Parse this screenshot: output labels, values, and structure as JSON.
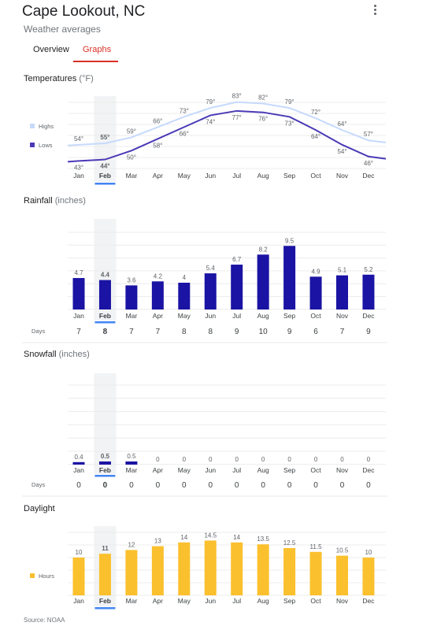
{
  "header": {
    "title": "Cape Lookout, NC",
    "subtitle": "Weather averages",
    "tabs": [
      {
        "label": "Overview",
        "active": false
      },
      {
        "label": "Graphs",
        "active": true
      }
    ]
  },
  "months": [
    "Jan",
    "Feb",
    "Mar",
    "Apr",
    "May",
    "Jun",
    "Jul",
    "Aug",
    "Sep",
    "Oct",
    "Nov",
    "Dec"
  ],
  "selected_month": "Feb",
  "days_label": "Days",
  "source": "Source: NOAA",
  "colors": {
    "highs": "#c6dafc",
    "lows": "#4a3ab6",
    "rain": "#1a13a3",
    "snow": "#1a13a3",
    "daylight": "#fbc02d",
    "highlight": "#f1f3f4",
    "accent": "#4285f4"
  },
  "chart_data": [
    {
      "type": "line",
      "title": "Temperatures",
      "unit": "(°F)",
      "categories": [
        "Jan",
        "Feb",
        "Mar",
        "Apr",
        "May",
        "Jun",
        "Jul",
        "Aug",
        "Sep",
        "Oct",
        "Nov",
        "Dec"
      ],
      "series": [
        {
          "name": "Highs",
          "values": [
            54,
            55,
            59,
            66,
            73,
            79,
            83,
            82,
            79,
            72,
            64,
            57
          ]
        },
        {
          "name": "Lows",
          "values": [
            43,
            44,
            50,
            58,
            66,
            74,
            77,
            76,
            73,
            64,
            54,
            46
          ]
        }
      ],
      "value_suffix": "°"
    },
    {
      "type": "bar",
      "title": "Rainfall",
      "unit": "(inches)",
      "categories": [
        "Jan",
        "Feb",
        "Mar",
        "Apr",
        "May",
        "Jun",
        "Jul",
        "Aug",
        "Sep",
        "Oct",
        "Nov",
        "Dec"
      ],
      "values": [
        4.7,
        4.4,
        3.6,
        4.2,
        4,
        5.4,
        6.7,
        8.2,
        9.5,
        4.9,
        5.1,
        5.2
      ],
      "days": [
        7,
        8,
        7,
        7,
        8,
        8,
        9,
        10,
        9,
        6,
        7,
        9
      ]
    },
    {
      "type": "bar",
      "title": "Snowfall",
      "unit": "(inches)",
      "categories": [
        "Jan",
        "Feb",
        "Mar",
        "Apr",
        "May",
        "Jun",
        "Jul",
        "Aug",
        "Sep",
        "Oct",
        "Nov",
        "Dec"
      ],
      "values": [
        0.4,
        0.5,
        0.5,
        0,
        0,
        0,
        0,
        0,
        0,
        0,
        0,
        0
      ],
      "days": [
        0,
        0,
        0,
        0,
        0,
        0,
        0,
        0,
        0,
        0,
        0,
        0
      ]
    },
    {
      "type": "bar",
      "title": "Daylight",
      "unit": "",
      "series_name": "Hours",
      "categories": [
        "Jan",
        "Feb",
        "Mar",
        "Apr",
        "May",
        "Jun",
        "Jul",
        "Aug",
        "Sep",
        "Oct",
        "Nov",
        "Dec"
      ],
      "values": [
        10,
        11,
        12,
        13,
        14,
        14.5,
        14,
        13.5,
        12.5,
        11.5,
        10.5,
        10
      ]
    }
  ]
}
